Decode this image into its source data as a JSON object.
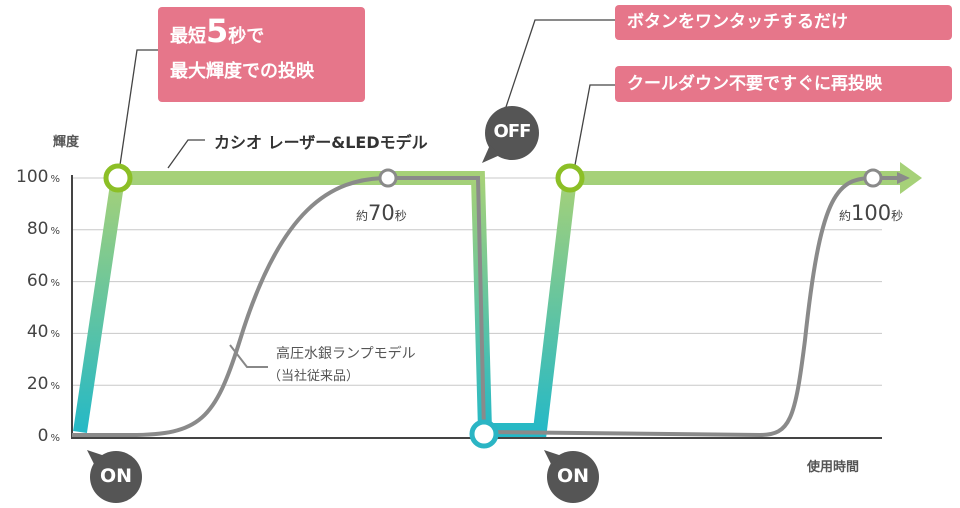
{
  "chart_data": {
    "type": "line",
    "ylabel": "輝度",
    "xlabel": "使用時間",
    "ylim": [
      0,
      100
    ],
    "yticks": [
      {
        "value": 0,
        "label": "0",
        "unit": "%"
      },
      {
        "value": 20,
        "label": "20",
        "unit": "%"
      },
      {
        "value": 40,
        "label": "40",
        "unit": "%"
      },
      {
        "value": 60,
        "label": "60",
        "unit": "%"
      },
      {
        "value": 80,
        "label": "80",
        "unit": "%"
      },
      {
        "value": 100,
        "label": "100",
        "unit": "%"
      }
    ],
    "grid": true,
    "series": [
      {
        "name": "カシオ レーザー&LEDモデル",
        "color": "#a6d178",
        "color_low": "#22b8c8",
        "y_sequence": [
          0,
          100,
          100,
          0,
          0,
          100,
          100
        ]
      },
      {
        "name": "高圧水銀ランプモデル",
        "name_sub": "（当社従来品）",
        "color": "#8a8a8a",
        "y_sequence": [
          0,
          100,
          100,
          0,
          0,
          100
        ]
      }
    ],
    "annotations": {
      "warmup_first": "約70秒",
      "warmup_second_prefix": "約",
      "warmup_second_value": "100",
      "warmup_second_suffix": "秒",
      "warmup_first_prefix": "約",
      "warmup_first_value": "70",
      "warmup_first_suffix": "秒"
    },
    "events": {
      "on": "ON",
      "off": "OFF"
    },
    "callouts": {
      "fast_line1_pre": "最短",
      "fast_line1_num": "5",
      "fast_line1_post": "秒で",
      "fast_line2": "最大輝度での投映",
      "one_touch": "ボタンをワンタッチするだけ",
      "no_cooldown": "クールダウン不要ですぐに再投映"
    },
    "colors": {
      "accent": "#e6768a",
      "green_ring": "#8cbf26",
      "teal_ring": "#2bb5c4",
      "bubble": "#555555"
    }
  }
}
